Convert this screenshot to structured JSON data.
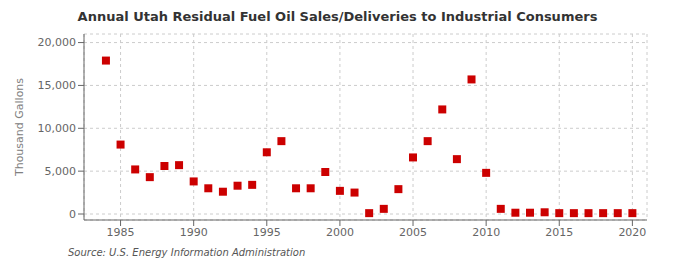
{
  "chart_data": {
    "type": "scatter",
    "title": "Annual Utah Residual Fuel Oil Sales/Deliveries to Industrial Consumers",
    "ylabel": "Thousand Gallons",
    "annotations": [
      "Source: U.S. Energy Information Administration"
    ],
    "color": "#CC0000",
    "marker": "square",
    "grid": true,
    "xlim": [
      1982.5,
      2021
    ],
    "ylim": [
      -700,
      21000
    ],
    "xticks": [
      1985,
      1990,
      1995,
      2000,
      2005,
      2010,
      2015,
      2020
    ],
    "yticks": [
      0,
      {
        "value": 5000,
        "label": "5,000"
      },
      {
        "value": 10000,
        "label": "10,000"
      },
      {
        "value": 15000,
        "label": "15,000"
      },
      {
        "value": 20000,
        "label": "20,000"
      }
    ],
    "x": [
      1984,
      1985,
      1986,
      1987,
      1988,
      1989,
      1990,
      1991,
      1992,
      1993,
      1994,
      1995,
      1996,
      1997,
      1998,
      1999,
      2000,
      2001,
      2002,
      2003,
      2004,
      2005,
      2006,
      2007,
      2008,
      2009,
      2010,
      2011,
      2012,
      2013,
      2014,
      2015,
      2016,
      2017,
      2018,
      2019,
      2020
    ],
    "values": [
      17900,
      8100,
      5200,
      4300,
      5600,
      5700,
      3800,
      3000,
      2600,
      3300,
      3400,
      7200,
      8500,
      3000,
      3000,
      4900,
      2700,
      2500,
      100,
      600,
      2900,
      6600,
      8500,
      12200,
      6400,
      15700,
      4800,
      600,
      150,
      150,
      200,
      100,
      100,
      100,
      100,
      100,
      100
    ]
  }
}
